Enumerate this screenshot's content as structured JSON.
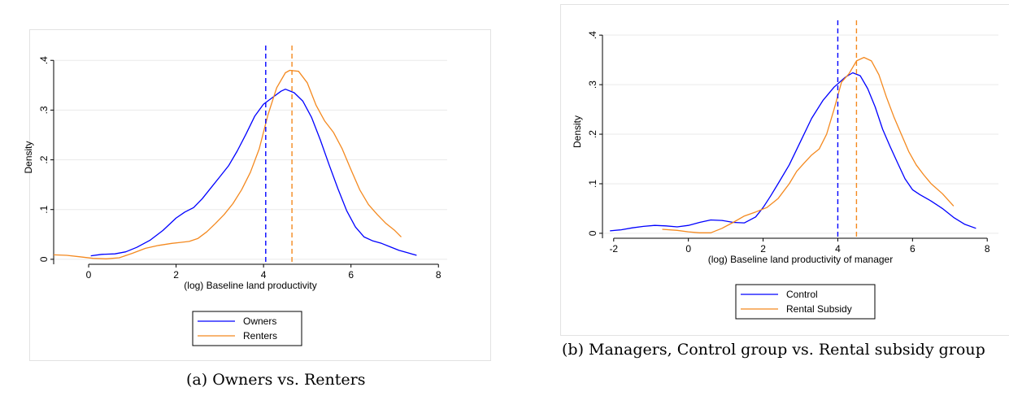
{
  "chart_data": [
    {
      "type": "line",
      "caption": "(a) Owners vs. Renters",
      "xlabel": "(log) Baseline land productivity",
      "ylabel": "Density",
      "xlim": [
        -0.8,
        8.2
      ],
      "ylim": [
        -0.01,
        0.42
      ],
      "xticks": [
        0,
        2,
        4,
        6,
        8
      ],
      "yticks": [
        0,
        0.1,
        0.2,
        0.3,
        0.4
      ],
      "xtick_labels": [
        "0",
        "2",
        "4",
        "6",
        "8"
      ],
      "ytick_labels": [
        "0",
        ".1",
        ".2",
        ".3",
        ".4"
      ],
      "grid": "horizontal",
      "legend_position": "bottom",
      "series": [
        {
          "name": "Owners",
          "color": "#0000ff",
          "x": [
            0.05,
            0.3,
            0.6,
            0.85,
            1.1,
            1.4,
            1.7,
            2.0,
            2.2,
            2.4,
            2.6,
            2.8,
            3.0,
            3.2,
            3.4,
            3.6,
            3.8,
            4.0,
            4.2,
            4.4,
            4.5,
            4.7,
            4.9,
            5.1,
            5.3,
            5.5,
            5.7,
            5.9,
            6.1,
            6.3,
            6.5,
            6.7,
            6.9,
            7.1,
            7.3,
            7.5
          ],
          "y": [
            0.007,
            0.01,
            0.011,
            0.015,
            0.024,
            0.038,
            0.058,
            0.083,
            0.095,
            0.104,
            0.122,
            0.144,
            0.166,
            0.188,
            0.218,
            0.252,
            0.288,
            0.312,
            0.325,
            0.338,
            0.342,
            0.335,
            0.318,
            0.285,
            0.24,
            0.19,
            0.142,
            0.098,
            0.065,
            0.045,
            0.037,
            0.032,
            0.025,
            0.018,
            0.013,
            0.008
          ]
        },
        {
          "name": "Renters",
          "color": "#f4891f",
          "x": [
            -0.8,
            -0.5,
            -0.2,
            0.1,
            0.4,
            0.7,
            1.0,
            1.3,
            1.6,
            1.9,
            2.1,
            2.3,
            2.5,
            2.7,
            2.9,
            3.1,
            3.3,
            3.5,
            3.7,
            3.9,
            4.1,
            4.3,
            4.5,
            4.6,
            4.8,
            5.0,
            5.2,
            5.4,
            5.6,
            5.8,
            6.0,
            6.2,
            6.4,
            6.6,
            6.8,
            7.0,
            7.15
          ],
          "y": [
            0.009,
            0.008,
            0.005,
            0.002,
            0.001,
            0.003,
            0.012,
            0.022,
            0.028,
            0.032,
            0.034,
            0.036,
            0.042,
            0.055,
            0.072,
            0.09,
            0.112,
            0.14,
            0.175,
            0.222,
            0.29,
            0.345,
            0.375,
            0.38,
            0.378,
            0.355,
            0.31,
            0.278,
            0.255,
            0.222,
            0.18,
            0.14,
            0.11,
            0.09,
            0.072,
            0.058,
            0.045
          ]
        }
      ],
      "vlines": [
        {
          "x": 4.05,
          "color": "#0000ff",
          "style": "dashed"
        },
        {
          "x": 4.65,
          "color": "#f4891f",
          "style": "dashed"
        }
      ]
    },
    {
      "type": "line",
      "caption": "(b) Managers, Control group vs. Rental subsidy group",
      "xlabel": "(log) Baseline land productivity of manager",
      "ylabel": "Density",
      "xlim": [
        -2.3,
        8.3
      ],
      "ylim": [
        -0.01,
        0.42
      ],
      "xticks": [
        -2,
        0,
        2,
        4,
        6,
        8
      ],
      "yticks": [
        0,
        0.1,
        0.2,
        0.3,
        0.4
      ],
      "xtick_labels": [
        "-2",
        "0",
        "2",
        "4",
        "6",
        "8"
      ],
      "ytick_labels": [
        "0",
        ".1",
        ".2",
        ".3",
        ".4"
      ],
      "grid": "horizontal",
      "legend_position": "bottom",
      "series": [
        {
          "name": "Control",
          "color": "#0000ff",
          "x": [
            -2.1,
            -1.8,
            -1.5,
            -1.2,
            -0.9,
            -0.6,
            -0.3,
            0.0,
            0.3,
            0.6,
            0.9,
            1.2,
            1.5,
            1.8,
            2.0,
            2.2,
            2.4,
            2.7,
            3.0,
            3.3,
            3.6,
            3.9,
            4.2,
            4.4,
            4.6,
            4.8,
            5.0,
            5.2,
            5.4,
            5.6,
            5.8,
            6.0,
            6.2,
            6.5,
            6.8,
            7.1,
            7.4,
            7.7
          ],
          "y": [
            0.005,
            0.007,
            0.011,
            0.014,
            0.016,
            0.015,
            0.013,
            0.016,
            0.022,
            0.027,
            0.026,
            0.022,
            0.021,
            0.033,
            0.052,
            0.075,
            0.1,
            0.138,
            0.185,
            0.232,
            0.268,
            0.295,
            0.315,
            0.324,
            0.318,
            0.292,
            0.255,
            0.21,
            0.175,
            0.142,
            0.11,
            0.088,
            0.078,
            0.065,
            0.05,
            0.032,
            0.018,
            0.01
          ]
        },
        {
          "name": "Rental Subsidy",
          "color": "#f4891f",
          "x": [
            -0.7,
            -0.3,
            0.0,
            0.3,
            0.6,
            0.9,
            1.2,
            1.5,
            1.8,
            2.1,
            2.4,
            2.7,
            2.9,
            3.1,
            3.3,
            3.5,
            3.7,
            3.9,
            4.1,
            4.3,
            4.5,
            4.7,
            4.9,
            5.1,
            5.3,
            5.5,
            5.7,
            5.9,
            6.1,
            6.3,
            6.5,
            6.8,
            7.1
          ],
          "y": [
            0.008,
            0.006,
            0.003,
            0.001,
            0.001,
            0.01,
            0.022,
            0.035,
            0.043,
            0.052,
            0.07,
            0.1,
            0.125,
            0.142,
            0.158,
            0.17,
            0.2,
            0.25,
            0.305,
            0.322,
            0.348,
            0.355,
            0.348,
            0.32,
            0.275,
            0.235,
            0.2,
            0.165,
            0.138,
            0.118,
            0.1,
            0.08,
            0.055
          ]
        }
      ],
      "vlines": [
        {
          "x": 4.0,
          "color": "#0000ff",
          "style": "dashed"
        },
        {
          "x": 4.5,
          "color": "#f4891f",
          "style": "dashed"
        }
      ]
    }
  ]
}
